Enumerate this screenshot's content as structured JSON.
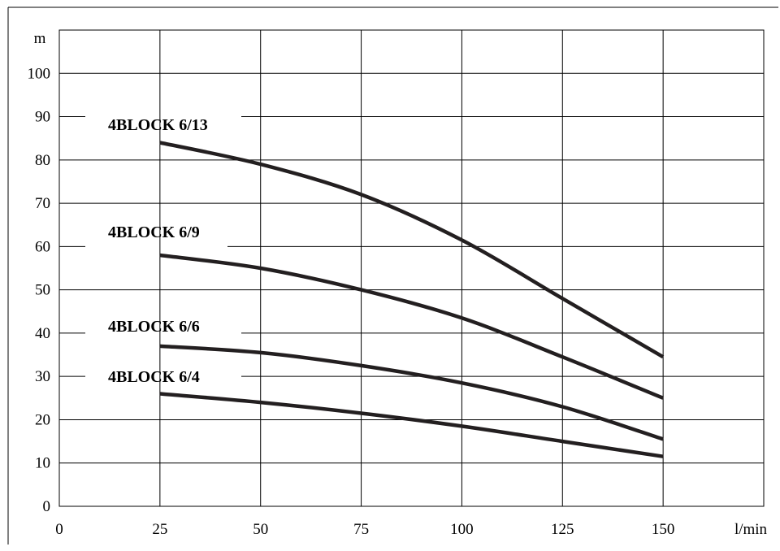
{
  "chart_data": {
    "type": "line",
    "title": "",
    "xlabel": "l/min",
    "ylabel": "m",
    "xlim": [
      0,
      175
    ],
    "ylim": [
      0,
      110
    ],
    "x_ticks": [
      "0",
      "25",
      "50",
      "75",
      "100",
      "125",
      "150"
    ],
    "y_ticks": [
      "0",
      "10",
      "20",
      "30",
      "40",
      "50",
      "60",
      "70",
      "80",
      "90",
      "100"
    ],
    "grid": true,
    "line_color": "#231f20",
    "series": [
      {
        "name": "4BLOCK 6/13",
        "x": [
          25,
          50,
          75,
          100,
          125,
          150
        ],
        "y": [
          84,
          79,
          72,
          61.5,
          48,
          34.5
        ]
      },
      {
        "name": "4BLOCK 6/9",
        "x": [
          25,
          50,
          75,
          100,
          125,
          150
        ],
        "y": [
          58,
          55,
          50,
          43.5,
          34.5,
          25
        ]
      },
      {
        "name": "4BLOCK 6/6",
        "x": [
          25,
          50,
          75,
          100,
          125,
          150
        ],
        "y": [
          37,
          35.5,
          32.5,
          28.5,
          23,
          15.5
        ]
      },
      {
        "name": "4BLOCK 6/4",
        "x": [
          25,
          50,
          75,
          100,
          125,
          150
        ],
        "y": [
          26,
          24,
          21.5,
          18.5,
          15,
          11.5
        ]
      }
    ]
  }
}
